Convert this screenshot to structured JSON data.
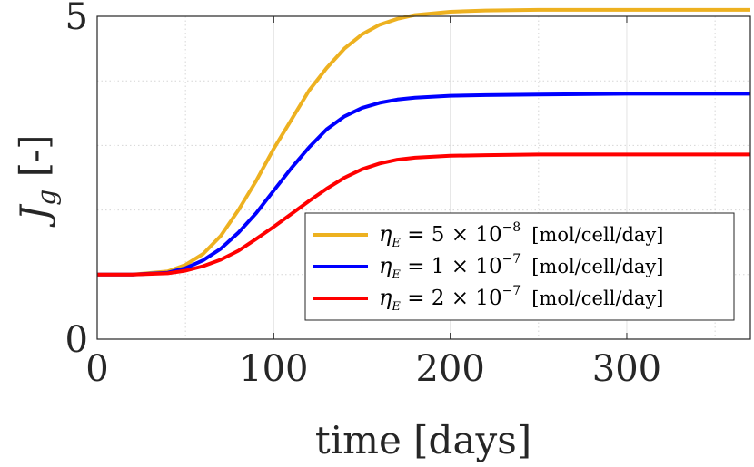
{
  "chart_data": {
    "type": "line",
    "title": "",
    "xlabel": "time [days]",
    "ylabel_main": "J",
    "ylabel_sub": "g",
    "ylabel_unit": "[-]",
    "xlim": [
      0,
      370
    ],
    "ylim": [
      0,
      5
    ],
    "xticks": [
      0,
      100,
      200,
      300
    ],
    "yticks": [
      0,
      5
    ],
    "xtick_labels": [
      "0",
      "100",
      "200",
      "300"
    ],
    "ytick_labels": [
      "0",
      "5"
    ],
    "grid": true,
    "legend_position": "bottom-right",
    "x": [
      0,
      20,
      40,
      50,
      60,
      70,
      80,
      90,
      100,
      110,
      120,
      130,
      140,
      150,
      160,
      170,
      180,
      200,
      220,
      250,
      300,
      370
    ],
    "series": [
      {
        "name": "η_E = 5 × 10^-8 [mol/cell/day]",
        "legend_symbol": "η",
        "legend_sub": "E",
        "legend_base": " = 5 × 10",
        "legend_exp": "−8",
        "legend_unit": "[mol/cell/day]",
        "color": "#EDB120",
        "values": [
          1.0,
          1.0,
          1.05,
          1.15,
          1.32,
          1.6,
          2.0,
          2.45,
          2.95,
          3.4,
          3.85,
          4.2,
          4.5,
          4.72,
          4.87,
          4.96,
          5.02,
          5.07,
          5.09,
          5.1,
          5.1,
          5.1
        ]
      },
      {
        "name": "η_E = 1 × 10^-7 [mol/cell/day]",
        "legend_symbol": "η",
        "legend_sub": "E",
        "legend_base": " = 1 × 10",
        "legend_exp": "−7",
        "legend_unit": "[mol/cell/day]",
        "color": "#0000FF",
        "values": [
          1.0,
          1.0,
          1.03,
          1.1,
          1.22,
          1.4,
          1.65,
          1.95,
          2.3,
          2.65,
          2.97,
          3.25,
          3.45,
          3.58,
          3.66,
          3.71,
          3.74,
          3.77,
          3.78,
          3.79,
          3.8,
          3.8
        ]
      },
      {
        "name": "η_E = 2 × 10^-7 [mol/cell/day]",
        "legend_symbol": "η",
        "legend_sub": "E",
        "legend_base": " = 2 × 10",
        "legend_exp": "−7",
        "legend_unit": "[mol/cell/day]",
        "color": "#FF0000",
        "values": [
          1.0,
          1.0,
          1.02,
          1.06,
          1.13,
          1.23,
          1.37,
          1.55,
          1.74,
          1.94,
          2.14,
          2.33,
          2.5,
          2.63,
          2.72,
          2.78,
          2.81,
          2.84,
          2.85,
          2.86,
          2.86,
          2.86
        ]
      }
    ]
  }
}
